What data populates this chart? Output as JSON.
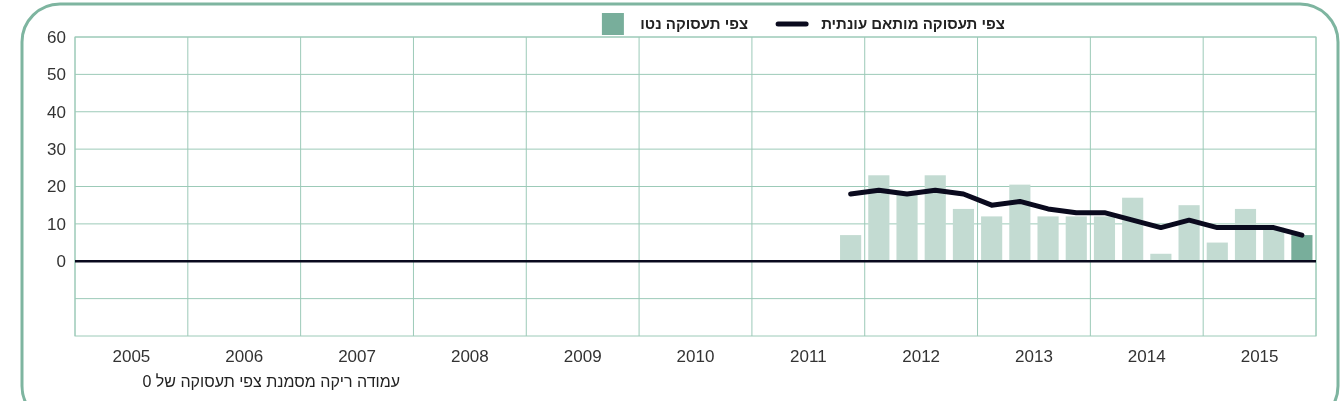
{
  "chart_data": {
    "type": "bar",
    "x": [
      2011.875,
      2012.125,
      2012.375,
      2012.625,
      2012.875,
      2013.125,
      2013.375,
      2013.625,
      2013.875,
      2014.125,
      2014.375,
      2014.625,
      2014.875,
      2015.125,
      2015.375,
      2015.625,
      2015.875
    ],
    "series": [
      {
        "name": "צפי תעסוקה נטו",
        "color": "#78ae9b",
        "colors": [
          "#c3dbd2",
          "#c3dbd2",
          "#c3dbd2",
          "#c3dbd2",
          "#c3dbd2",
          "#c3dbd2",
          "#c3dbd2",
          "#c3dbd2",
          "#c3dbd2",
          "#c3dbd2",
          "#c3dbd2",
          "#c3dbd2",
          "#c3dbd2",
          "#c3dbd2",
          "#c3dbd2",
          "#c3dbd2",
          "#78ae9b"
        ],
        "values": [
          7,
          23,
          18,
          23,
          14,
          12,
          20.5,
          12,
          12,
          12,
          17,
          2,
          15,
          5,
          14,
          9,
          7
        ]
      },
      {
        "name": "צפי תעסוקה מותאם עונתית",
        "type": "line",
        "color": "#0a0a1e",
        "values": [
          18,
          19,
          18,
          19,
          18,
          15,
          16,
          14,
          13,
          13,
          11,
          9,
          11,
          9,
          9,
          9,
          7
        ]
      }
    ],
    "xlim": [
      2005,
      2016
    ],
    "xticks": [
      {
        "value": 2005,
        "label": null
      },
      {
        "value": 2005.5,
        "label": "2005"
      },
      {
        "value": 2006,
        "label": null
      },
      {
        "value": 2006.5,
        "label": "2006"
      },
      {
        "value": 2007,
        "label": null
      },
      {
        "value": 2007.5,
        "label": "2007"
      },
      {
        "value": 2008,
        "label": null
      },
      {
        "value": 2008.5,
        "label": "2008"
      },
      {
        "value": 2009,
        "label": null
      },
      {
        "value": 2009.5,
        "label": "2009"
      },
      {
        "value": 2010,
        "label": null
      },
      {
        "value": 2010.5,
        "label": "2010"
      },
      {
        "value": 2011,
        "label": null
      },
      {
        "value": 2011.5,
        "label": "2011"
      },
      {
        "value": 2012,
        "label": null
      },
      {
        "value": 2012.5,
        "label": "2012"
      },
      {
        "value": 2013,
        "label": null
      },
      {
        "value": 2013.5,
        "label": "2013"
      },
      {
        "value": 2014,
        "label": null
      },
      {
        "value": 2014.5,
        "label": "2014"
      },
      {
        "value": 2015,
        "label": null
      },
      {
        "value": 2015.5,
        "label": "2015"
      },
      {
        "value": 2016,
        "label": null
      }
    ],
    "ylim": [
      -20,
      60
    ],
    "yticks": [
      {
        "value": -10,
        "label": null
      },
      0,
      10,
      20,
      30,
      40,
      50,
      60
    ],
    "grid": true,
    "legend": "top",
    "ref_lines": [
      {
        "axis": "y",
        "value": 0,
        "color": "#0a0a1e"
      }
    ],
    "annotations": [
      "עמודה ריקה מסמנת צפי תעסוקה של 0"
    ]
  }
}
